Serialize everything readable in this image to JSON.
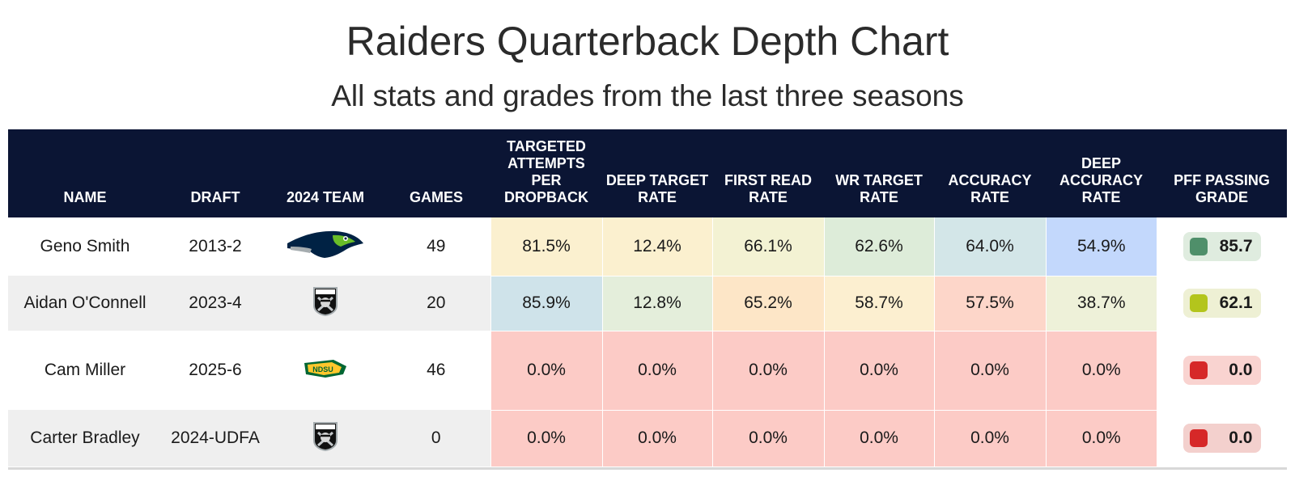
{
  "title": "Raiders Quarterback Depth Chart",
  "subtitle": "All stats and grades from the last three seasons",
  "colors": {
    "header_bg": "#0b1534",
    "high": "#6bbf8a",
    "mid": "#c4d32a",
    "low": "#d93030"
  },
  "chart_data": {
    "type": "table",
    "columns": [
      "NAME",
      "DRAFT",
      "2024 TEAM",
      "GAMES",
      "TARGETED ATTEMPTS PER DROPBACK",
      "DEEP TARGET RATE",
      "FIRST READ RATE",
      "WR TARGET RATE",
      "ACCURACY RATE",
      "DEEP ACCURACY RATE",
      "PFF PASSING GRADE"
    ],
    "rows": [
      {
        "name": "Geno Smith",
        "draft": "2013-2",
        "team_logo": "seahawks-logo",
        "games": "49",
        "metrics": [
          "81.5%",
          "12.4%",
          "66.1%",
          "62.6%",
          "64.0%",
          "54.9%"
        ],
        "metric_colors": [
          "#fbf0cf",
          "#fbf0cf",
          "#f3f2d3",
          "#ddecd9",
          "#d3e6e8",
          "#c3d8fc"
        ],
        "grade": "85.7",
        "grade_color": "#4f8f6a",
        "grade_bg": "#dfecdf"
      },
      {
        "name": "Aidan O'Connell",
        "draft": "2023-4",
        "team_logo": "raiders-logo",
        "games": "20",
        "metrics": [
          "85.9%",
          "12.8%",
          "65.2%",
          "58.7%",
          "57.5%",
          "38.7%"
        ],
        "metric_colors": [
          "#cfe3ea",
          "#e4eedb",
          "#fde6c7",
          "#fcefd0",
          "#fdd6c9",
          "#eef1d9"
        ],
        "grade": "62.1",
        "grade_color": "#b3c51c",
        "grade_bg": "#eef0d4"
      },
      {
        "name": "Cam Miller",
        "draft": "2025-6",
        "team_logo": "ndsu-logo",
        "games": "46",
        "metrics": [
          "0.0%",
          "0.0%",
          "0.0%",
          "0.0%",
          "0.0%",
          "0.0%"
        ],
        "metric_colors": [
          "#fccbc6",
          "#fccbc6",
          "#fccbc6",
          "#fccbc6",
          "#fccbc6",
          "#fccbc6"
        ],
        "grade": "0.0",
        "grade_color": "#d62828",
        "grade_bg": "#f9d3d0"
      },
      {
        "name": "Carter Bradley",
        "draft": "2024-UDFA",
        "team_logo": "raiders-logo",
        "games": "0",
        "metrics": [
          "0.0%",
          "0.0%",
          "0.0%",
          "0.0%",
          "0.0%",
          "0.0%"
        ],
        "metric_colors": [
          "#fccbc6",
          "#fccbc6",
          "#fccbc6",
          "#fccbc6",
          "#fccbc6",
          "#fccbc6"
        ],
        "grade": "0.0",
        "grade_color": "#d62828",
        "grade_bg": "#f3d0cd"
      }
    ]
  }
}
